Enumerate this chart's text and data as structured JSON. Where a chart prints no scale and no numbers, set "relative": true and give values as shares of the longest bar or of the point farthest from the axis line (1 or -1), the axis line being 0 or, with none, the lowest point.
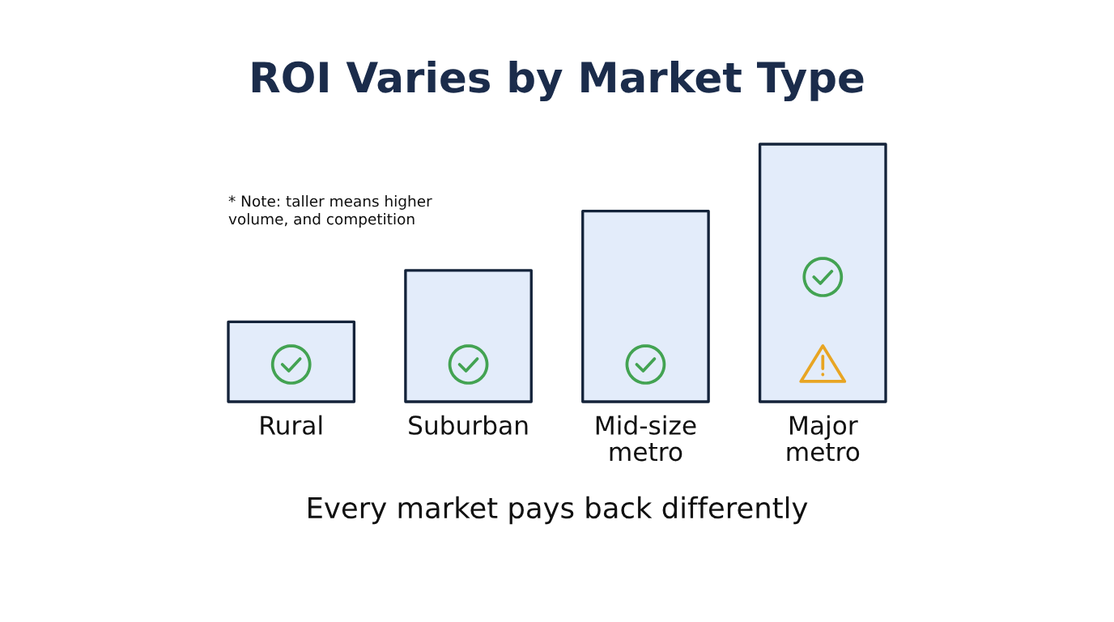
{
  "chart_data": {
    "type": "bar",
    "title": "ROI Varies by Market Type",
    "categories": [
      "Rural",
      "Suburban",
      "Mid-size\nmetro",
      "Major\nmetro"
    ],
    "values": [
      0.31,
      0.51,
      0.74,
      1
    ],
    "relative": true,
    "color": "#e3ecfa",
    "annotations": [
      "* Note: taller means higher\nvolume, and competition",
      "Every market pays back differently"
    ]
  }
}
